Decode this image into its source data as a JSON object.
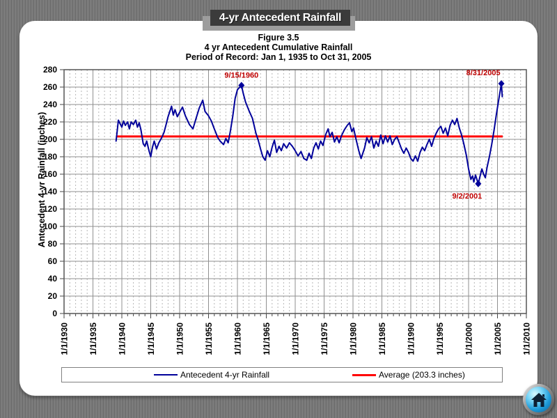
{
  "banner": {
    "title": "4-yr Antecedent Rainfall"
  },
  "header": {
    "line1": "Figure 3.5",
    "line2": "4 yr Antecedent Cumulative Rainfall",
    "line3": "Period of Record:  Jan 1, 1935 to Oct 31, 2005"
  },
  "colors": {
    "background_gray": "#7a7a7a",
    "banner_bg": "#3b3b3b",
    "banner_shadow": "#9d9d9d",
    "series_blue": "#00009a",
    "average_red": "#ff0000",
    "annotation_red": "#c00000"
  },
  "chart_data": {
    "type": "line",
    "title": "4 yr Antecedent Cumulative Rainfall",
    "xlabel": "",
    "ylabel": "Antecedent 4-yr Rainfall (inches)",
    "xlim": [
      1930,
      2010
    ],
    "ylim": [
      0,
      280
    ],
    "grid": {
      "major_color": "#8f8f8f",
      "minor_color": "#b6b6b6",
      "minor_interval_years": 1,
      "major_interval_years": 5
    },
    "y_ticks": [
      0,
      20,
      40,
      60,
      80,
      100,
      120,
      140,
      160,
      180,
      200,
      220,
      240,
      260,
      280
    ],
    "x_ticks": [
      {
        "year": 1930,
        "label": "1/1/1930"
      },
      {
        "year": 1935,
        "label": "1/1/1935"
      },
      {
        "year": 1940,
        "label": "1/1/1940"
      },
      {
        "year": 1945,
        "label": "1/1/1945"
      },
      {
        "year": 1950,
        "label": "1/1/1950"
      },
      {
        "year": 1955,
        "label": "1/1/1955"
      },
      {
        "year": 1960,
        "label": "1/1/1960"
      },
      {
        "year": 1965,
        "label": "1/1/1965"
      },
      {
        "year": 1970,
        "label": "1/1/1970"
      },
      {
        "year": 1975,
        "label": "1/1/1975"
      },
      {
        "year": 1980,
        "label": "1/1/1980"
      },
      {
        "year": 1985,
        "label": "1/1/1985"
      },
      {
        "year": 1990,
        "label": "1/1/1990"
      },
      {
        "year": 1995,
        "label": "1/1/1995"
      },
      {
        "year": 2000,
        "label": "1/1/2000"
      },
      {
        "year": 2005,
        "label": "1/1/2005"
      },
      {
        "year": 2010,
        "label": "1/1/2010"
      }
    ],
    "series": [
      {
        "name": "Antecedent 4-yr Rainfall",
        "color": "#00009a",
        "points": [
          [
            1939.0,
            198
          ],
          [
            1939.2,
            210
          ],
          [
            1939.4,
            222
          ],
          [
            1939.7,
            218
          ],
          [
            1940.0,
            214
          ],
          [
            1940.3,
            221
          ],
          [
            1940.6,
            216
          ],
          [
            1941.0,
            220
          ],
          [
            1941.3,
            212
          ],
          [
            1941.6,
            220
          ],
          [
            1942.0,
            217
          ],
          [
            1942.4,
            222
          ],
          [
            1942.7,
            214
          ],
          [
            1943.0,
            219
          ],
          [
            1943.3,
            211
          ],
          [
            1943.7,
            195
          ],
          [
            1944.0,
            192
          ],
          [
            1944.3,
            198
          ],
          [
            1944.7,
            187
          ],
          [
            1945.0,
            180
          ],
          [
            1945.3,
            191
          ],
          [
            1945.6,
            198
          ],
          [
            1946.0,
            189
          ],
          [
            1946.4,
            196
          ],
          [
            1946.9,
            202
          ],
          [
            1947.3,
            208
          ],
          [
            1947.7,
            218
          ],
          [
            1948.0,
            226
          ],
          [
            1948.6,
            238
          ],
          [
            1948.9,
            228
          ],
          [
            1949.2,
            234
          ],
          [
            1949.6,
            226
          ],
          [
            1950.0,
            231
          ],
          [
            1950.5,
            237
          ],
          [
            1951.0,
            227
          ],
          [
            1951.7,
            217
          ],
          [
            1952.3,
            212
          ],
          [
            1952.8,
            223
          ],
          [
            1953.4,
            236
          ],
          [
            1954.0,
            245
          ],
          [
            1954.4,
            232
          ],
          [
            1955.0,
            227
          ],
          [
            1955.5,
            221
          ],
          [
            1956.0,
            212
          ],
          [
            1956.6,
            202
          ],
          [
            1957.0,
            198
          ],
          [
            1957.6,
            194
          ],
          [
            1958.0,
            201
          ],
          [
            1958.4,
            196
          ],
          [
            1958.8,
            210
          ],
          [
            1959.2,
            227
          ],
          [
            1959.6,
            247
          ],
          [
            1960.0,
            257
          ],
          [
            1960.7,
            262
          ],
          [
            1961.0,
            253
          ],
          [
            1961.4,
            243
          ],
          [
            1962.0,
            233
          ],
          [
            1962.6,
            224
          ],
          [
            1963.2,
            207
          ],
          [
            1963.6,
            199
          ],
          [
            1964.0,
            189
          ],
          [
            1964.4,
            180
          ],
          [
            1964.8,
            176
          ],
          [
            1965.2,
            187
          ],
          [
            1965.6,
            180
          ],
          [
            1966.0,
            191
          ],
          [
            1966.4,
            199
          ],
          [
            1966.8,
            185
          ],
          [
            1967.2,
            192
          ],
          [
            1967.6,
            187
          ],
          [
            1968.0,
            195
          ],
          [
            1968.5,
            190
          ],
          [
            1969.0,
            196
          ],
          [
            1969.5,
            192
          ],
          [
            1970.0,
            187
          ],
          [
            1970.5,
            181
          ],
          [
            1971.0,
            186
          ],
          [
            1971.5,
            178
          ],
          [
            1972.0,
            176
          ],
          [
            1972.4,
            184
          ],
          [
            1972.8,
            178
          ],
          [
            1973.2,
            190
          ],
          [
            1973.6,
            196
          ],
          [
            1974.0,
            189
          ],
          [
            1974.4,
            198
          ],
          [
            1974.8,
            193
          ],
          [
            1975.3,
            206
          ],
          [
            1975.7,
            212
          ],
          [
            1976.0,
            203
          ],
          [
            1976.4,
            208
          ],
          [
            1976.8,
            197
          ],
          [
            1977.2,
            203
          ],
          [
            1977.6,
            196
          ],
          [
            1978.0,
            204
          ],
          [
            1978.5,
            211
          ],
          [
            1979.0,
            216
          ],
          [
            1979.4,
            219
          ],
          [
            1979.8,
            209
          ],
          [
            1980.1,
            213
          ],
          [
            1980.5,
            201
          ],
          [
            1981.0,
            187
          ],
          [
            1981.4,
            178
          ],
          [
            1982.0,
            190
          ],
          [
            1982.4,
            202
          ],
          [
            1982.8,
            196
          ],
          [
            1983.2,
            203
          ],
          [
            1983.6,
            190
          ],
          [
            1984.0,
            198
          ],
          [
            1984.4,
            192
          ],
          [
            1984.8,
            205
          ],
          [
            1985.2,
            195
          ],
          [
            1985.6,
            204
          ],
          [
            1986.0,
            197
          ],
          [
            1986.4,
            204
          ],
          [
            1986.8,
            194
          ],
          [
            1987.2,
            200
          ],
          [
            1987.6,
            203
          ],
          [
            1988.0,
            196
          ],
          [
            1988.4,
            189
          ],
          [
            1988.8,
            184
          ],
          [
            1989.2,
            190
          ],
          [
            1989.6,
            185
          ],
          [
            1990.0,
            178
          ],
          [
            1990.4,
            175
          ],
          [
            1990.8,
            181
          ],
          [
            1991.2,
            175
          ],
          [
            1991.6,
            185
          ],
          [
            1992.0,
            191
          ],
          [
            1992.4,
            187
          ],
          [
            1992.8,
            194
          ],
          [
            1993.2,
            200
          ],
          [
            1993.6,
            192
          ],
          [
            1994.0,
            201
          ],
          [
            1994.4,
            207
          ],
          [
            1994.8,
            212
          ],
          [
            1995.2,
            215
          ],
          [
            1995.6,
            207
          ],
          [
            1996.0,
            213
          ],
          [
            1996.4,
            204
          ],
          [
            1996.8,
            216
          ],
          [
            1997.2,
            222
          ],
          [
            1997.6,
            217
          ],
          [
            1998.0,
            224
          ],
          [
            1998.4,
            213
          ],
          [
            1998.8,
            205
          ],
          [
            1999.2,
            194
          ],
          [
            1999.6,
            182
          ],
          [
            2000.0,
            166
          ],
          [
            2000.4,
            154
          ],
          [
            2000.7,
            158
          ],
          [
            2000.9,
            151
          ],
          [
            2001.2,
            159
          ],
          [
            2001.67,
            149
          ],
          [
            2002.0,
            158
          ],
          [
            2002.3,
            166
          ],
          [
            2002.6,
            160
          ],
          [
            2002.9,
            156
          ],
          [
            2003.2,
            168
          ],
          [
            2003.6,
            180
          ],
          [
            2004.0,
            194
          ],
          [
            2004.4,
            210
          ],
          [
            2004.8,
            228
          ],
          [
            2005.2,
            245
          ],
          [
            2005.67,
            264
          ],
          [
            2005.83,
            249
          ]
        ]
      }
    ],
    "average_line": {
      "label": "Average (203.3 inches)",
      "value": 203.3,
      "color": "#ff0000",
      "x_start": 1939.0,
      "x_end": 2005.9
    },
    "annotation_color": "#c00000",
    "annotations": [
      {
        "text": "9/15/1960",
        "year": 1960.7,
        "value": 262,
        "label_offset": [
          0,
          -11
        ]
      },
      {
        "text": "8/31/2005",
        "year": 2005.67,
        "value": 264,
        "label_offset": [
          -26,
          -12
        ]
      },
      {
        "text": "9/2/2001",
        "year": 2001.67,
        "value": 149,
        "label_offset": [
          -16,
          21
        ]
      }
    ],
    "legend_position": "bottom"
  },
  "legend": {
    "items": [
      {
        "label": "Antecedent 4-yr Rainfall",
        "color": "#00009a",
        "thickness": 2
      },
      {
        "label": "Average (203.3 inches)",
        "color": "#ff0000",
        "thickness": 3
      }
    ]
  }
}
